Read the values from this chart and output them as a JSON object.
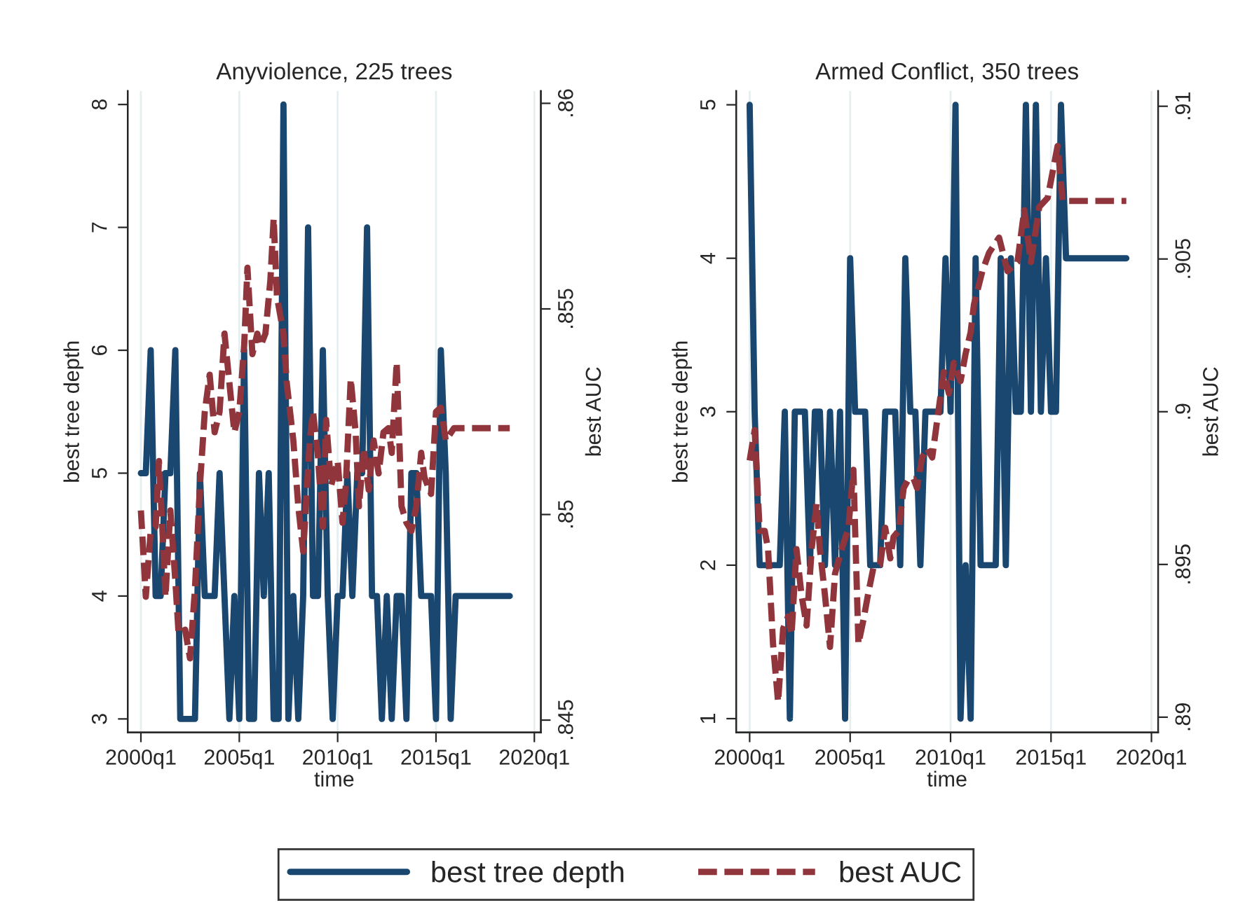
{
  "chart_data": [
    {
      "type": "line",
      "title": "Anyviolence, 225 trees",
      "xlabel": "time",
      "ylabel": "best tree depth",
      "y2label": "best AUC",
      "xlim": [
        "1999-05",
        "2020-05"
      ],
      "xticks": [
        {
          "value": "2000-01",
          "label": "2000q1"
        },
        {
          "value": "2005-01",
          "label": "2005q1"
        },
        {
          "value": "2010-01",
          "label": "2010q1"
        },
        {
          "value": "2015-01",
          "label": "2015q1"
        },
        {
          "value": "2020-01",
          "label": "2020q1"
        }
      ],
      "ylim": [
        2.89,
        8.11
      ],
      "yticks": [
        3,
        4,
        5,
        6,
        7,
        8
      ],
      "y2lim": [
        0.8447,
        0.8603
      ],
      "y2ticks": [
        {
          "value": 0.845,
          "label": ".845"
        },
        {
          "value": 0.85,
          "label": ".85"
        },
        {
          "value": 0.855,
          "label": ".855"
        },
        {
          "value": 0.86,
          "label": ".86"
        }
      ],
      "grid": "x",
      "legend": "bottom",
      "series": [
        {
          "name": "best tree depth",
          "color": "#1a476f",
          "line_style": "solid",
          "x": [
            "2000-01",
            "2000-04",
            "2000-07",
            "2000-10",
            "2001-01",
            "2001-04",
            "2001-07",
            "2001-10",
            "2002-01",
            "2002-04",
            "2002-07",
            "2002-10",
            "2003-01",
            "2003-04",
            "2003-07",
            "2003-10",
            "2004-01",
            "2004-04",
            "2004-07",
            "2004-10",
            "2005-01",
            "2005-04",
            "2005-07",
            "2005-10",
            "2006-01",
            "2006-04",
            "2006-07",
            "2006-10",
            "2007-01",
            "2007-04",
            "2007-07",
            "2007-10",
            "2008-01",
            "2008-04",
            "2008-07",
            "2008-10",
            "2009-01",
            "2009-04",
            "2009-07",
            "2009-10",
            "2010-01",
            "2010-04",
            "2010-07",
            "2010-10",
            "2011-01",
            "2011-04",
            "2011-07",
            "2011-10",
            "2012-01",
            "2012-04",
            "2012-07",
            "2012-10",
            "2013-01",
            "2013-04",
            "2013-07",
            "2013-10",
            "2014-01",
            "2014-04",
            "2014-07",
            "2014-10",
            "2015-01",
            "2015-04",
            "2015-07",
            "2015-10",
            "2016-01",
            "2016-04",
            "2016-07",
            "2016-10",
            "2017-01",
            "2017-04",
            "2017-07",
            "2017-10",
            "2018-01",
            "2018-04",
            "2018-07",
            "2018-10"
          ],
          "values": [
            5,
            5,
            6,
            4,
            4,
            5,
            5,
            6,
            3,
            3,
            3,
            3,
            5,
            4,
            4,
            4,
            5,
            4,
            3,
            4,
            3,
            6,
            3,
            3,
            5,
            4,
            5,
            3,
            3,
            8,
            3,
            4,
            3,
            4,
            7,
            4,
            4,
            6,
            4,
            3,
            4,
            4,
            5,
            4,
            5,
            5,
            7,
            4,
            4,
            3,
            4,
            3,
            4,
            4,
            3,
            5,
            5,
            4,
            4,
            4,
            3,
            6,
            5,
            3,
            4,
            4,
            4,
            4,
            4,
            4,
            4,
            4,
            4,
            4,
            4,
            4
          ]
        },
        {
          "name": "best AUC",
          "color": "#90353b",
          "axis": "y2",
          "line_style": "dashed",
          "x": [
            "2000-01",
            "2000-04",
            "2000-07",
            "2000-10",
            "2000-12",
            "2001-02",
            "2001-04",
            "2001-07",
            "2001-10",
            "2001-12",
            "2002-04",
            "2002-07",
            "2002-10",
            "2003-01",
            "2003-04",
            "2003-07",
            "2003-10",
            "2004-01",
            "2004-04",
            "2004-07",
            "2004-10",
            "2005-01",
            "2005-04",
            "2005-06",
            "2005-09",
            "2005-12",
            "2006-02",
            "2006-05",
            "2006-08",
            "2006-10",
            "2006-12",
            "2007-04",
            "2007-06",
            "2007-10",
            "2008-01",
            "2008-04",
            "2008-08",
            "2008-10",
            "2009-01",
            "2009-04",
            "2009-06",
            "2009-09",
            "2010-01",
            "2010-04",
            "2010-06",
            "2010-09",
            "2010-12",
            "2011-02",
            "2011-05",
            "2011-08",
            "2011-11",
            "2012-02",
            "2012-05",
            "2012-08",
            "2012-10",
            "2013-01",
            "2013-04",
            "2013-07",
            "2013-10",
            "2014-01",
            "2014-04",
            "2014-06",
            "2014-10",
            "2015-01",
            "2015-04",
            "2015-07",
            "2015-12",
            "2018-10"
          ],
          "values": [
            0.8501,
            0.848,
            0.8496,
            0.8497,
            0.8513,
            0.8497,
            0.848,
            0.8501,
            0.8484,
            0.8471,
            0.8472,
            0.8465,
            0.8482,
            0.8507,
            0.8525,
            0.8534,
            0.852,
            0.8525,
            0.8544,
            0.8532,
            0.852,
            0.8525,
            0.8541,
            0.856,
            0.8539,
            0.8544,
            0.8541,
            0.8544,
            0.8557,
            0.8572,
            0.8553,
            0.8544,
            0.8532,
            0.8518,
            0.8502,
            0.8491,
            0.8518,
            0.8525,
            0.8514,
            0.8497,
            0.8523,
            0.8507,
            0.8513,
            0.8498,
            0.8507,
            0.8533,
            0.852,
            0.8502,
            0.8516,
            0.8506,
            0.8518,
            0.851,
            0.852,
            0.8521,
            0.8515,
            0.8537,
            0.8502,
            0.8498,
            0.8496,
            0.8502,
            0.8515,
            0.8509,
            0.8505,
            0.8525,
            0.8526,
            0.8518,
            0.8521,
            0.8521
          ]
        }
      ]
    },
    {
      "type": "line",
      "title": "Armed Conflict, 350 trees",
      "xlabel": "time",
      "ylabel": "best tree depth",
      "y2label": "best AUC",
      "xlim": [
        "1999-05",
        "2020-05"
      ],
      "xticks": [
        {
          "value": "2000-01",
          "label": "2000q1"
        },
        {
          "value": "2005-01",
          "label": "2005q1"
        },
        {
          "value": "2010-01",
          "label": "2010q1"
        },
        {
          "value": "2015-01",
          "label": "2015q1"
        },
        {
          "value": "2020-01",
          "label": "2020q1"
        }
      ],
      "ylim": [
        0.91,
        5.09
      ],
      "yticks": [
        1,
        2,
        3,
        4,
        5
      ],
      "y2lim": [
        0.8895,
        0.9105
      ],
      "y2ticks": [
        {
          "value": 0.89,
          "label": ".89"
        },
        {
          "value": 0.895,
          "label": ".895"
        },
        {
          "value": 0.9,
          "label": ".9"
        },
        {
          "value": 0.905,
          "label": ".905"
        },
        {
          "value": 0.91,
          "label": ".91"
        }
      ],
      "grid": "x",
      "series": [
        {
          "color": "#1a476f",
          "line_style": "solid",
          "x": [
            "2000-01",
            "2000-04",
            "2000-07",
            "2000-10",
            "2001-01",
            "2001-04",
            "2001-07",
            "2001-10",
            "2002-01",
            "2002-04",
            "2002-07",
            "2002-10",
            "2003-01",
            "2003-04",
            "2003-07",
            "2003-10",
            "2004-01",
            "2004-04",
            "2004-07",
            "2004-10",
            "2005-01",
            "2005-04",
            "2005-07",
            "2005-10",
            "2006-01",
            "2006-04",
            "2006-07",
            "2006-10",
            "2007-01",
            "2007-04",
            "2007-07",
            "2007-10",
            "2008-01",
            "2008-04",
            "2008-07",
            "2008-10",
            "2009-01",
            "2009-04",
            "2009-07",
            "2009-10",
            "2010-01",
            "2010-04",
            "2010-07",
            "2010-10",
            "2011-01",
            "2011-04",
            "2011-07",
            "2011-10",
            "2012-01",
            "2012-04",
            "2012-07",
            "2012-10",
            "2013-01",
            "2013-04",
            "2013-07",
            "2013-10",
            "2014-01",
            "2014-04",
            "2014-07",
            "2014-10",
            "2015-01",
            "2015-04",
            "2015-07",
            "2015-10",
            "2016-01",
            "2016-04",
            "2016-07",
            "2016-10",
            "2017-01",
            "2017-04",
            "2017-07",
            "2017-10",
            "2018-01",
            "2018-04",
            "2018-07",
            "2018-10"
          ],
          "values": [
            5,
            3,
            2,
            2,
            2,
            2,
            2,
            3,
            1,
            3,
            3,
            3,
            2,
            3,
            3,
            2,
            3,
            2,
            3,
            1,
            4,
            3,
            3,
            3,
            2,
            2,
            2,
            3,
            3,
            3,
            2,
            4,
            3,
            3,
            2,
            3,
            3,
            3,
            3,
            4,
            3,
            5,
            1,
            2,
            1,
            4,
            2,
            2,
            2,
            2,
            4,
            2,
            4,
            3,
            3,
            5,
            3,
            5,
            3,
            4,
            3,
            3,
            5,
            4,
            4,
            4,
            4,
            4,
            4,
            4,
            4,
            4,
            4,
            4,
            4,
            4
          ]
        },
        {
          "color": "#90353b",
          "axis": "y2",
          "line_style": "dashed",
          "x": [
            "2000-01",
            "2000-04",
            "2000-07",
            "2000-10",
            "2000-12",
            "2001-03",
            "2001-06",
            "2001-09",
            "2001-12",
            "2002-02",
            "2002-05",
            "2002-08",
            "2002-11",
            "2003-02",
            "2003-05",
            "2003-07",
            "2003-10",
            "2004-01",
            "2004-04",
            "2004-08",
            "2004-12",
            "2005-03",
            "2005-06",
            "2005-09",
            "2005-12",
            "2006-03",
            "2006-07",
            "2006-10",
            "2007-01",
            "2007-03",
            "2007-06",
            "2007-09",
            "2007-12",
            "2008-03",
            "2008-05",
            "2008-08",
            "2008-11",
            "2009-02",
            "2009-05",
            "2009-09",
            "2009-12",
            "2010-03",
            "2010-07",
            "2010-10",
            "2011-01",
            "2011-03",
            "2011-08",
            "2011-12",
            "2012-06",
            "2012-11",
            "2013-05",
            "2013-09",
            "2014-01",
            "2014-06",
            "2014-11",
            "2015-05",
            "2015-08",
            "2015-12",
            "2018-10"
          ],
          "values": [
            0.8984,
            0.8994,
            0.8961,
            0.8961,
            0.8955,
            0.8924,
            0.8905,
            0.8929,
            0.8933,
            0.8927,
            0.8955,
            0.894,
            0.893,
            0.8955,
            0.897,
            0.8955,
            0.894,
            0.8923,
            0.8947,
            0.8955,
            0.8962,
            0.8981,
            0.8924,
            0.8932,
            0.8941,
            0.8949,
            0.895,
            0.8962,
            0.8952,
            0.8959,
            0.8961,
            0.8975,
            0.8978,
            0.8978,
            0.8975,
            0.8985,
            0.8988,
            0.8985,
            0.8997,
            0.9013,
            0.9006,
            0.9016,
            0.901,
            0.9019,
            0.9026,
            0.9035,
            0.9046,
            0.9052,
            0.9057,
            0.9046,
            0.9049,
            0.9066,
            0.9049,
            0.9067,
            0.907,
            0.9087,
            0.9069,
            0.9069,
            0.9069
          ]
        }
      ]
    }
  ]
}
